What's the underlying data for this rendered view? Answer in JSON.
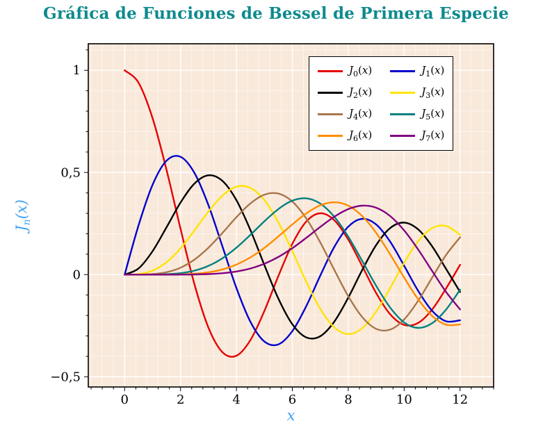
{
  "title": "Gráfica de Funciones de Bessel de Primera Especie",
  "colors": {
    "title": "#0e8a8e",
    "axis_label": "#3fa2f5",
    "plot_bg": "#f9e9db",
    "grid_major": "#ffffff",
    "grid_minor": "#ffffff",
    "frame": "#000000",
    "tick": "#000000",
    "legend_bg": "#ffffff",
    "legend_border": "#000000"
  },
  "chart_data": {
    "type": "line",
    "title": "Gráfica de Funciones de Bessel de Primera Especie",
    "xlabel": "x",
    "ylabel": "J_n(x)",
    "xlim": [
      -1.3,
      13.2
    ],
    "ylim": [
      -0.55,
      1.13
    ],
    "xticks": [
      0,
      2,
      4,
      6,
      8,
      10,
      12
    ],
    "xtick_labels": [
      "0",
      "2",
      "4",
      "6",
      "8",
      "10",
      "12"
    ],
    "yticks": [
      -0.5,
      0,
      0.5,
      1
    ],
    "ytick_labels": [
      "−0,5",
      "0",
      "0,5",
      "1"
    ],
    "x_minor_step": 0.4,
    "y_minor_step": 0.1,
    "grid": "both",
    "legend_position": "top-right",
    "x": [
      0,
      0.5,
      1,
      1.5,
      2,
      2.5,
      3,
      3.5,
      4,
      4.5,
      5,
      5.5,
      6,
      6.5,
      7,
      7.5,
      8,
      8.5,
      9,
      9.5,
      10,
      10.5,
      11,
      11.5,
      12
    ],
    "series": [
      {
        "id": "J0",
        "label": "J_0(x)",
        "color": "#e60000",
        "values": [
          1,
          0.9385,
          0.7652,
          0.5118,
          0.2239,
          -0.0484,
          -0.2601,
          -0.3801,
          -0.3971,
          -0.3205,
          -0.1776,
          -0.0068,
          0.1506,
          0.2601,
          0.3001,
          0.2663,
          0.1717,
          0.0419,
          -0.0903,
          -0.1939,
          -0.2459,
          -0.2366,
          -0.1712,
          -0.0677,
          0.0477
        ]
      },
      {
        "id": "J1",
        "label": "J_1(x)",
        "color": "#0000cd",
        "values": [
          0,
          0.2423,
          0.4401,
          0.5579,
          0.5767,
          0.4971,
          0.3391,
          0.1374,
          -0.066,
          -0.2311,
          -0.3276,
          -0.3414,
          -0.2767,
          -0.1538,
          -0.0047,
          0.1352,
          0.2346,
          0.2731,
          0.2453,
          0.1613,
          0.0435,
          -0.0789,
          -0.1768,
          -0.2284,
          -0.2234
        ]
      },
      {
        "id": "J2",
        "label": "J_2(x)",
        "color": "#000000",
        "values": [
          0,
          0.0306,
          0.1149,
          0.2321,
          0.3528,
          0.4461,
          0.4861,
          0.4586,
          0.3641,
          0.2178,
          0.0466,
          -0.1173,
          -0.2429,
          -0.3074,
          -0.3014,
          -0.2303,
          -0.113,
          0.0223,
          0.1448,
          0.2279,
          0.2546,
          0.2216,
          0.139,
          0.028,
          -0.0849
        ]
      },
      {
        "id": "J3",
        "label": "J_3(x)",
        "color": "#ffe400",
        "values": [
          0,
          0.0026,
          0.0196,
          0.061,
          0.1289,
          0.2166,
          0.3091,
          0.3867,
          0.4302,
          0.4247,
          0.3648,
          0.2561,
          0.1148,
          -0.0353,
          -0.1676,
          -0.258,
          -0.2911,
          -0.2626,
          -0.1809,
          -0.0653,
          0.0584,
          0.1633,
          0.2273,
          0.2381,
          0.1951
        ]
      },
      {
        "id": "J4",
        "label": "J_4(x)",
        "color": "#a8764a",
        "values": [
          0,
          0.0002,
          0.0025,
          0.0118,
          0.034,
          0.0738,
          0.132,
          0.2043,
          0.2811,
          0.3484,
          0.3912,
          0.3967,
          0.3576,
          0.2747,
          0.1578,
          0.0238,
          -0.1054,
          -0.2078,
          -0.2655,
          -0.2691,
          -0.2196,
          -0.1283,
          -0.015,
          0.0962,
          0.1825
        ]
      },
      {
        "id": "J5",
        "label": "J_5(x)",
        "color": "#008080",
        "values": [
          0,
          0,
          0.0002,
          0.0018,
          0.007,
          0.0195,
          0.043,
          0.0803,
          0.1321,
          0.1947,
          0.2611,
          0.3209,
          0.3621,
          0.3735,
          0.3479,
          0.2834,
          0.1858,
          0.067,
          -0.055,
          -0.1613,
          -0.2341,
          -0.261,
          -0.2383,
          -0.1712,
          -0.0735
        ]
      },
      {
        "id": "J6",
        "label": "J_6(x)",
        "color": "#ff8c00",
        "values": [
          0,
          0,
          0,
          0.0002,
          0.0012,
          0.0042,
          0.0114,
          0.0254,
          0.0491,
          0.0843,
          0.131,
          0.1868,
          0.2458,
          0.2999,
          0.3392,
          0.3541,
          0.3376,
          0.2866,
          0.2043,
          0.0993,
          -0.0145,
          -0.1203,
          -0.2016,
          -0.2451,
          -0.2437
        ]
      },
      {
        "id": "J7",
        "label": "J_7(x)",
        "color": "#800080",
        "values": [
          0,
          0,
          0,
          0,
          0.0002,
          0.0008,
          0.0025,
          0.0067,
          0.0152,
          0.03,
          0.0534,
          0.0866,
          0.1296,
          0.1801,
          0.2336,
          0.2832,
          0.3206,
          0.3376,
          0.3275,
          0.2867,
          0.2167,
          0.1235,
          0.0184,
          -0.0846,
          -0.1703
        ]
      }
    ]
  }
}
